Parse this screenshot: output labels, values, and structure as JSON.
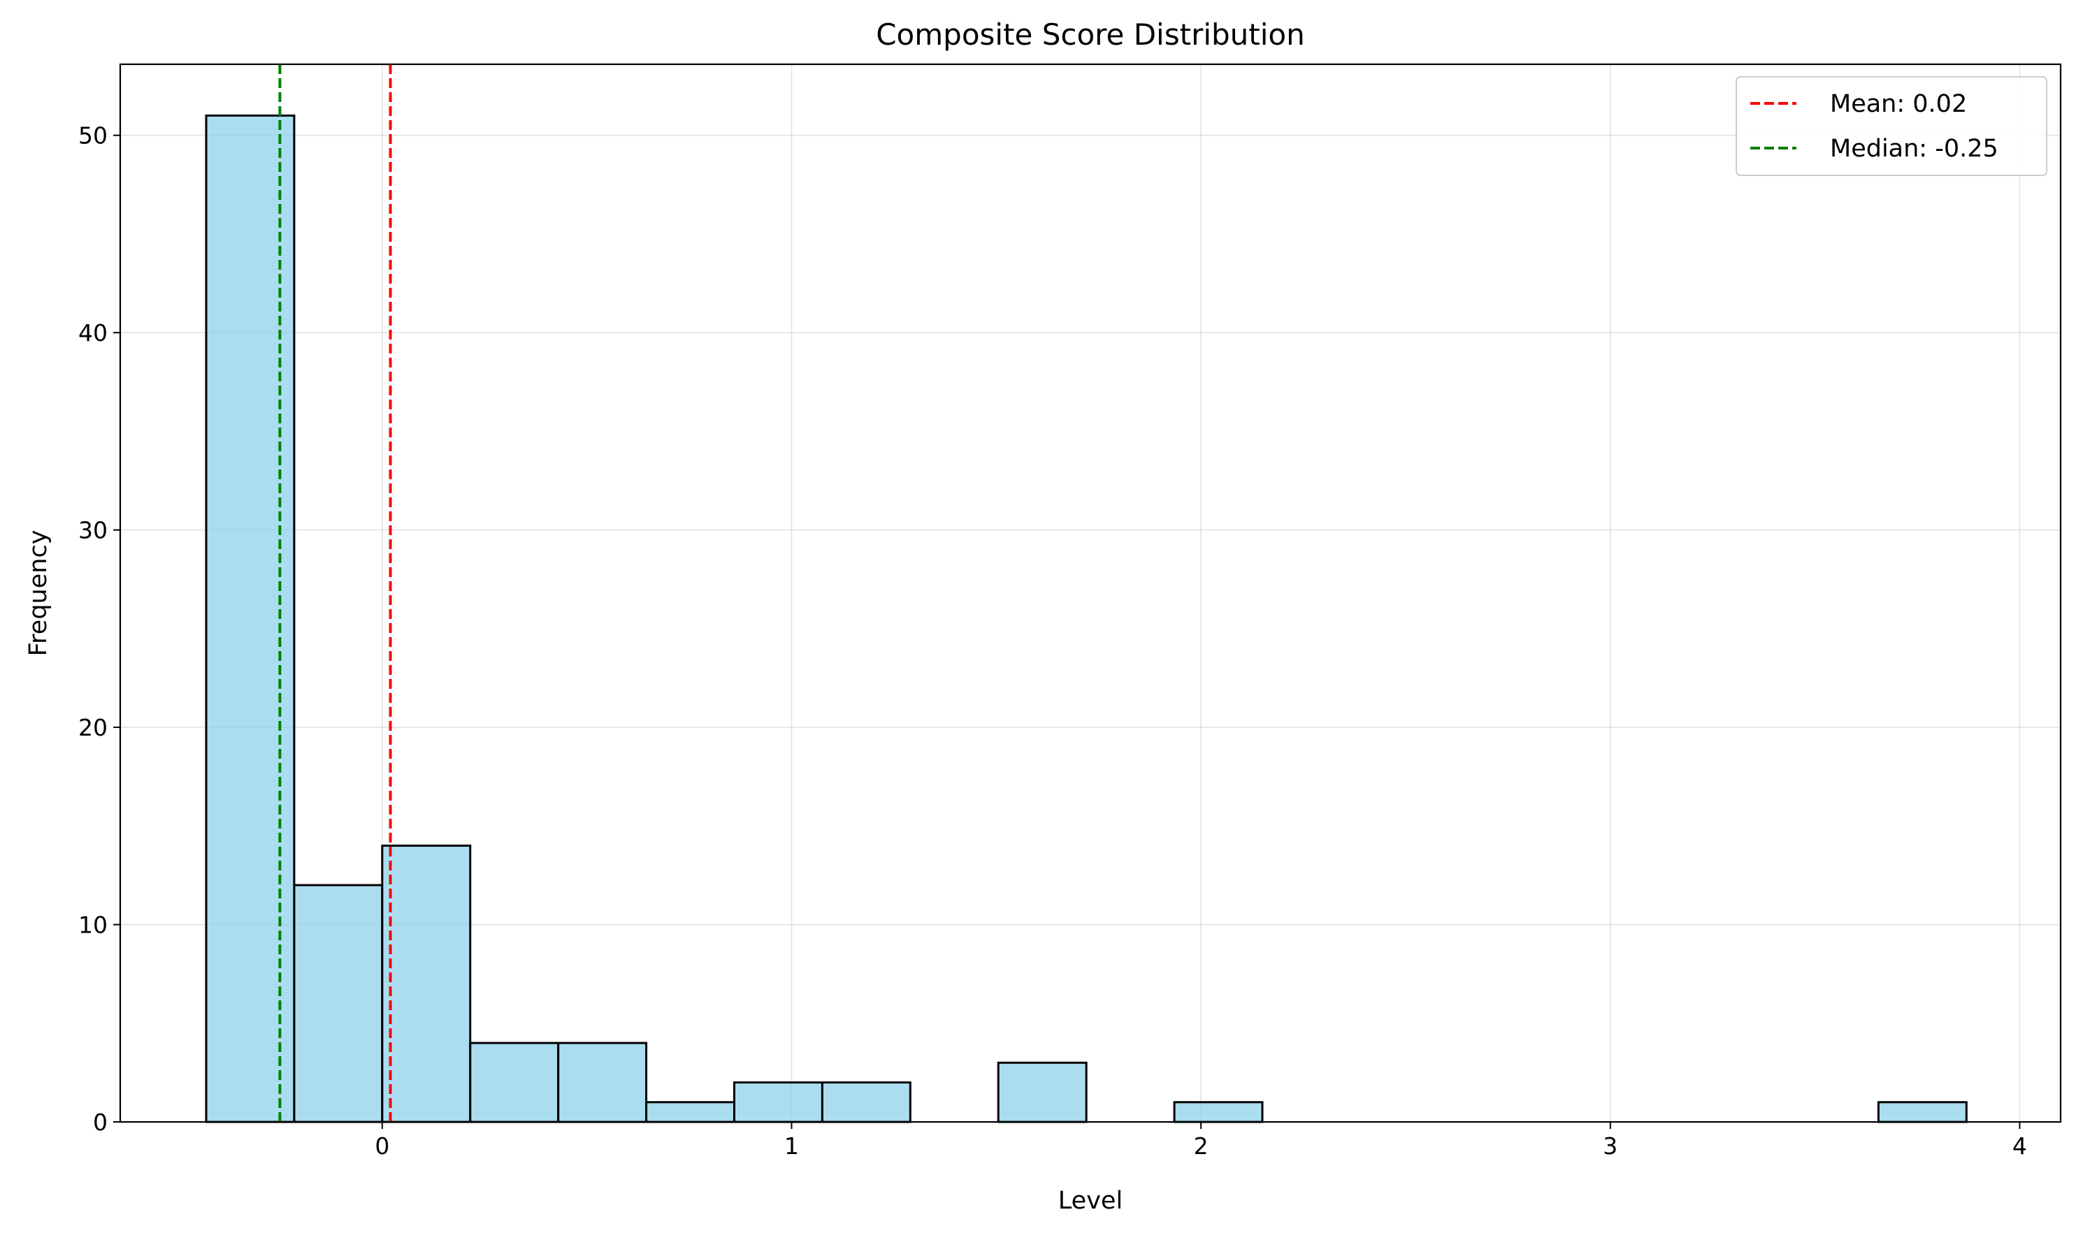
{
  "chart_data": {
    "type": "bar",
    "title": "Composite Score Distribution",
    "xlabel": "Level",
    "ylabel": "Frequency",
    "xlim": [
      -0.64,
      4.1
    ],
    "ylim": [
      0,
      53.6
    ],
    "xticks": [
      0,
      1,
      2,
      3,
      4
    ],
    "yticks": [
      0,
      10,
      20,
      30,
      40,
      50
    ],
    "grid": true,
    "legend_position": "top-right",
    "bar_color": "#87ceeb",
    "bar_edge_color": "#000000",
    "bins": [
      {
        "x0": -0.43,
        "x1": -0.215,
        "count": 51
      },
      {
        "x0": -0.215,
        "x1": 0.0,
        "count": 12
      },
      {
        "x0": 0.0,
        "x1": 0.215,
        "count": 14
      },
      {
        "x0": 0.215,
        "x1": 0.43,
        "count": 4
      },
      {
        "x0": 0.43,
        "x1": 0.645,
        "count": 4
      },
      {
        "x0": 0.645,
        "x1": 0.86,
        "count": 1
      },
      {
        "x0": 0.86,
        "x1": 1.075,
        "count": 2
      },
      {
        "x0": 1.075,
        "x1": 1.29,
        "count": 2
      },
      {
        "x0": 1.29,
        "x1": 1.505,
        "count": 0
      },
      {
        "x0": 1.505,
        "x1": 1.72,
        "count": 3
      },
      {
        "x0": 1.72,
        "x1": 1.935,
        "count": 0
      },
      {
        "x0": 1.935,
        "x1": 2.15,
        "count": 1
      },
      {
        "x0": 2.15,
        "x1": 2.365,
        "count": 0
      },
      {
        "x0": 2.365,
        "x1": 2.58,
        "count": 0
      },
      {
        "x0": 2.58,
        "x1": 2.795,
        "count": 0
      },
      {
        "x0": 2.795,
        "x1": 3.01,
        "count": 0
      },
      {
        "x0": 3.01,
        "x1": 3.225,
        "count": 0
      },
      {
        "x0": 3.225,
        "x1": 3.44,
        "count": 0
      },
      {
        "x0": 3.44,
        "x1": 3.655,
        "count": 0
      },
      {
        "x0": 3.655,
        "x1": 3.87,
        "count": 1
      }
    ],
    "reference_lines": [
      {
        "label": "Mean: 0.02",
        "value": 0.02,
        "color": "#ff0000"
      },
      {
        "label": "Median: -0.25",
        "value": -0.25,
        "color": "#008000"
      }
    ]
  }
}
